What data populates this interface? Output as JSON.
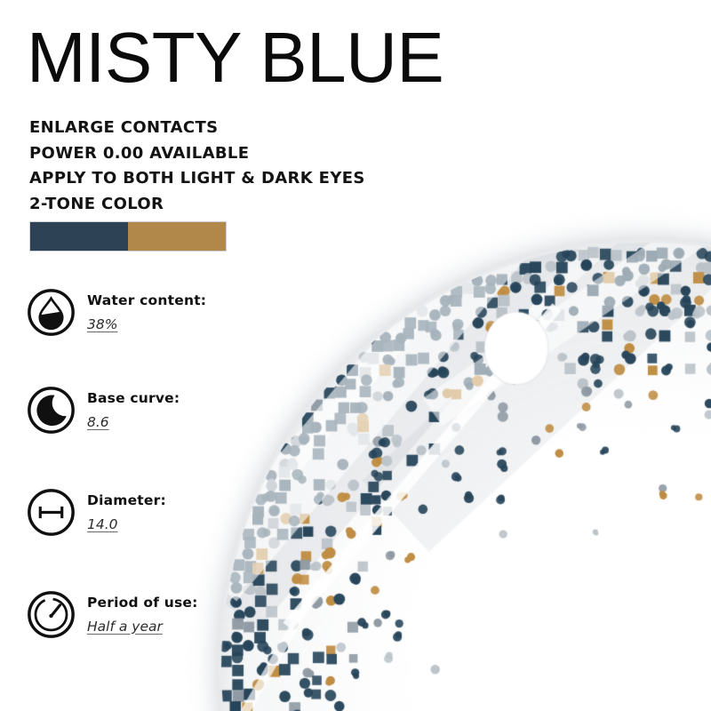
{
  "title": "MISTY BLUE",
  "features": [
    "ENLARGE CONTACTS",
    "POWER 0.00 AVAILABLE",
    "APPLY TO BOTH LIGHT & DARK EYES",
    "2-TONE COLOR"
  ],
  "swatches": [
    {
      "name": "dark-blue",
      "color": "#2d4355"
    },
    {
      "name": "gold",
      "color": "#b1884a"
    }
  ],
  "specs": [
    {
      "label": "Water content:",
      "value": "38%"
    },
    {
      "label": "Base curve:",
      "value": "8.6"
    },
    {
      "label": "Diameter:",
      "value": "14.0"
    },
    {
      "label": "Period of use:",
      "value": "Half a year"
    }
  ],
  "lens": {
    "palette": {
      "teal": "#27455a",
      "gold": "#bf8d43",
      "gray": "#8f9aa4",
      "light": "#bcc4ca"
    }
  }
}
